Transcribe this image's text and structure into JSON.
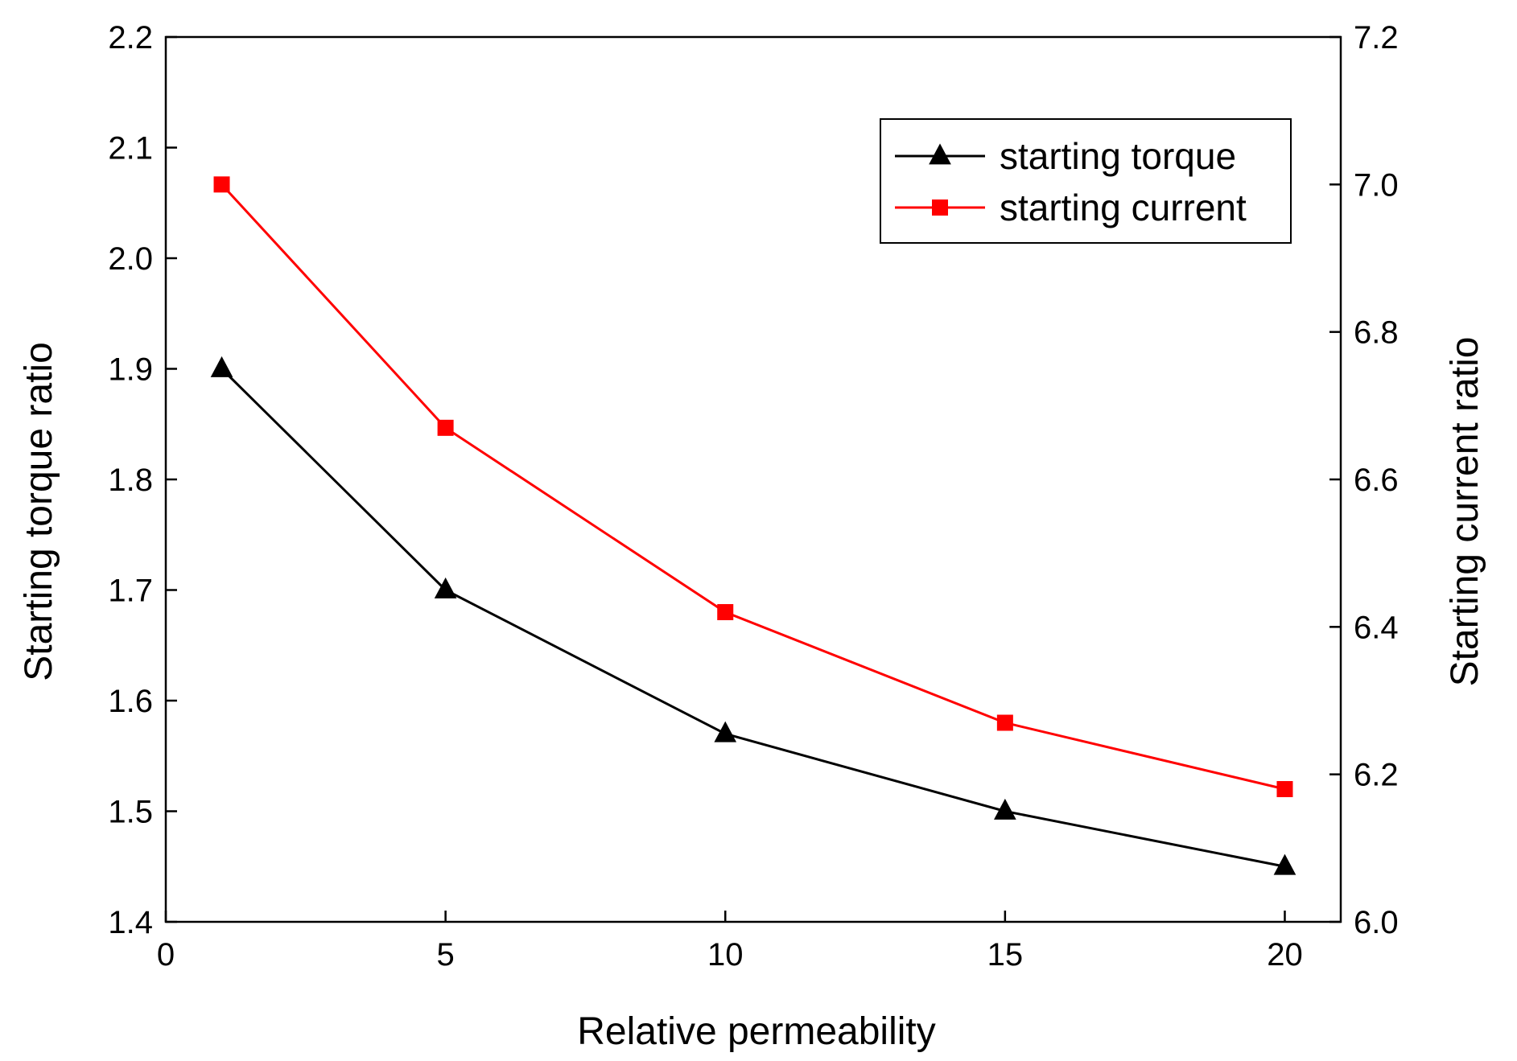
{
  "chart_data": {
    "type": "line",
    "xlabel": "Relative permeability",
    "ylabel_left": "Starting torque ratio",
    "ylabel_right": "Starting current ratio",
    "xlim": [
      0,
      21
    ],
    "ylim_left": [
      1.4,
      2.2
    ],
    "ylim_right": [
      6.0,
      7.2
    ],
    "x_ticks": [
      "0",
      "5",
      "10",
      "15",
      "20"
    ],
    "y_left_ticks": [
      "1.4",
      "1.5",
      "1.6",
      "1.7",
      "1.8",
      "1.9",
      "2.0",
      "2.1",
      "2.2"
    ],
    "y_right_ticks": [
      "6.0",
      "6.2",
      "6.4",
      "6.6",
      "6.8",
      "7.0",
      "7.2"
    ],
    "grid": false,
    "legend_position": "top-right",
    "series": [
      {
        "name": "starting torque",
        "axis": "left",
        "color": "#000000",
        "marker": "triangle",
        "x": [
          1,
          5,
          10,
          15,
          20
        ],
        "values": [
          1.9,
          1.7,
          1.57,
          1.5,
          1.45
        ]
      },
      {
        "name": "starting current",
        "axis": "right",
        "color": "#ff0000",
        "marker": "square",
        "x": [
          1,
          5,
          10,
          15,
          20
        ],
        "values": [
          7.0,
          6.67,
          6.42,
          6.27,
          6.18
        ]
      }
    ]
  }
}
